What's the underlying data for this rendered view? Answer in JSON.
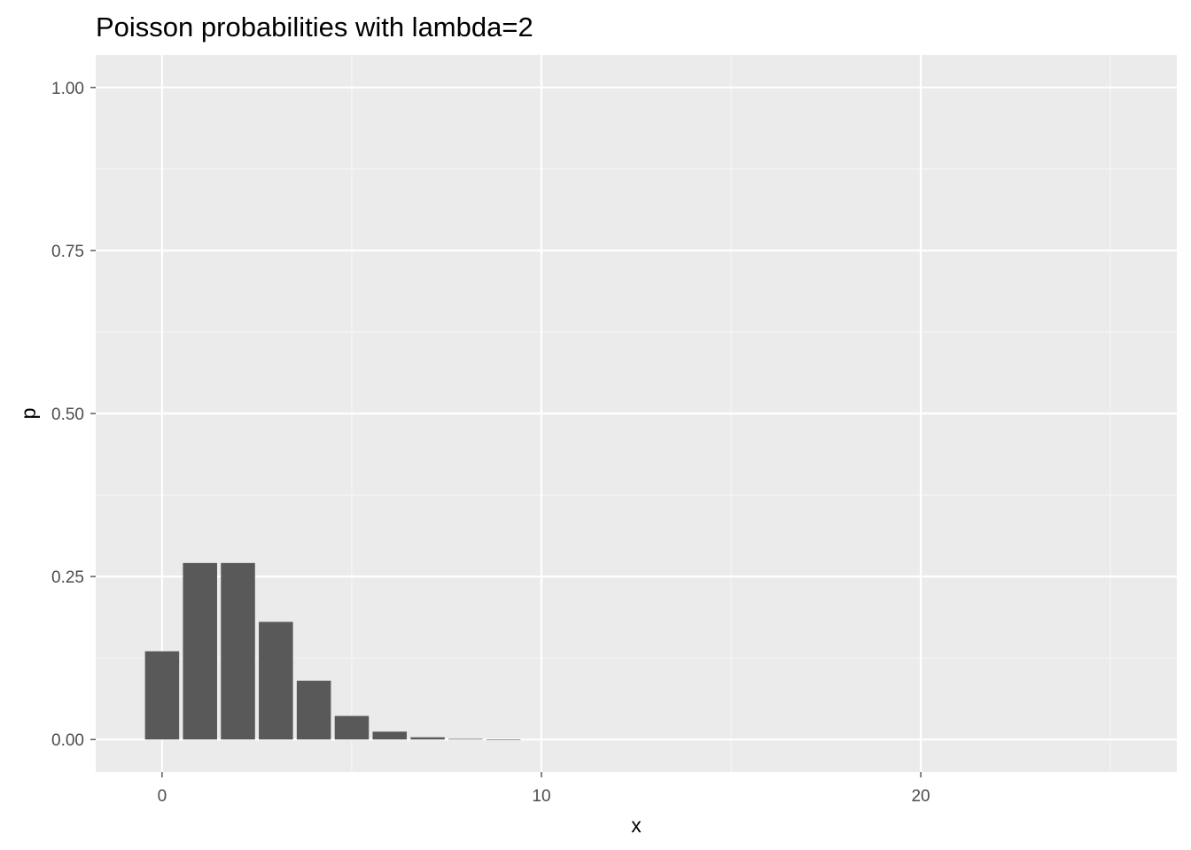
{
  "chart_data": {
    "type": "bar",
    "title": "Poisson probabilities with lambda=2",
    "xlabel": "x",
    "ylabel": "p",
    "x": [
      0,
      1,
      2,
      3,
      4,
      5,
      6,
      7,
      8,
      9
    ],
    "values": [
      0.1353,
      0.2707,
      0.2707,
      0.1804,
      0.0902,
      0.0361,
      0.012,
      0.0034,
      0.0009,
      0.0002
    ],
    "xlim": [
      -1.75,
      26.75
    ],
    "ylim": [
      -0.05,
      1.05
    ],
    "x_ticks": [
      0,
      10,
      20
    ],
    "x_tick_labels": [
      "0",
      "10",
      "20"
    ],
    "y_ticks": [
      0,
      0.25,
      0.5,
      0.75,
      1.0
    ],
    "y_tick_labels": [
      "0.00",
      "0.25",
      "0.50",
      "0.75",
      "1.00"
    ],
    "x_minor_ticks": [
      5,
      15,
      25
    ],
    "y_minor_ticks": [
      0.125,
      0.375,
      0.625,
      0.875
    ],
    "bar_width": 0.9,
    "grid": true,
    "colors": {
      "panel_background": "#ebebeb",
      "grid_major": "#ffffff",
      "grid_minor": "#f5f5f5",
      "bar_fill": "#595959",
      "tick_color": "#333333"
    }
  }
}
